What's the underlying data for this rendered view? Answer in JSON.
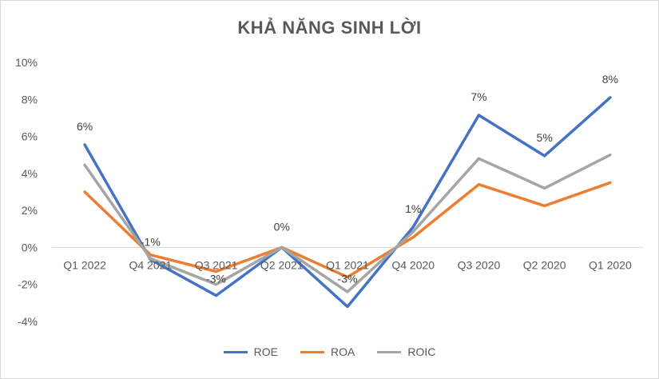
{
  "chart_data": {
    "type": "line",
    "title": "KHẢ NĂNG SINH LỜI",
    "categories": [
      "Q1 2022",
      "Q4 2021",
      "Q3 2021",
      "Q2 2021",
      "Q1 2021",
      "Q4 2020",
      "Q3 2020",
      "Q2 2020",
      "Q1 2020"
    ],
    "ylim": [
      -0.04,
      0.1
    ],
    "yticks": [
      "10%",
      "8%",
      "6%",
      "4%",
      "2%",
      "0%",
      "-2%",
      "-4%"
    ],
    "ytick_values": [
      0.1,
      0.08,
      0.06,
      0.04,
      0.02,
      0.0,
      -0.02,
      -0.04
    ],
    "grid": false,
    "legend_position": "bottom",
    "series": [
      {
        "name": "ROE",
        "color": "#4472C4",
        "values": [
          0.0555,
          -0.0065,
          -0.026,
          0.0,
          -0.032,
          0.011,
          0.0715,
          0.0495,
          0.081
        ]
      },
      {
        "name": "ROA",
        "color": "#ED7D31",
        "values": [
          0.03,
          -0.004,
          -0.013,
          0.0,
          -0.016,
          0.0055,
          0.034,
          0.0225,
          0.035
        ]
      },
      {
        "name": "ROIC",
        "color": "#A5A5A5",
        "values": [
          0.0445,
          -0.006,
          -0.02,
          0.0,
          -0.024,
          0.0085,
          0.048,
          0.032,
          0.05
        ]
      }
    ],
    "data_labels": [
      "6%",
      "-1%",
      "-3%",
      "0%",
      "-3%",
      "1%",
      "7%",
      "5%",
      "8%"
    ]
  }
}
